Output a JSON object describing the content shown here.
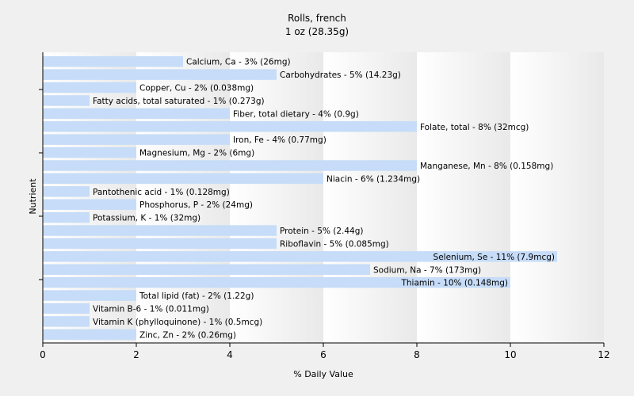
{
  "chart_data": {
    "type": "bar",
    "orientation": "horizontal",
    "title": "Rolls, french",
    "subtitle": "1 oz (28.35g)",
    "xlabel": "% Daily Value",
    "ylabel": "Nutrient",
    "xlim": [
      0,
      12
    ],
    "xticks": [
      0,
      2,
      4,
      6,
      8,
      10,
      12
    ],
    "grid": "vertical bands",
    "bar_color": "#c6dcf8",
    "categories": [
      "Calcium, Ca",
      "Carbohydrates",
      "Copper, Cu",
      "Fatty acids, total saturated",
      "Fiber, total dietary",
      "Folate, total",
      "Iron, Fe",
      "Magnesium, Mg",
      "Manganese, Mn",
      "Niacin",
      "Pantothenic acid",
      "Phosphorus, P",
      "Potassium, K",
      "Protein",
      "Riboflavin",
      "Selenium, Se",
      "Sodium, Na",
      "Thiamin",
      "Total lipid (fat)",
      "Vitamin B-6",
      "Vitamin K (phylloquinone)",
      "Zinc, Zn"
    ],
    "values": [
      3,
      5,
      2,
      1,
      4,
      8,
      4,
      2,
      8,
      6,
      1,
      2,
      1,
      5,
      5,
      11,
      7,
      10,
      2,
      1,
      1,
      2
    ],
    "labels": [
      "Calcium, Ca - 3% (26mg)",
      "Carbohydrates - 5% (14.23g)",
      "Copper, Cu - 2% (0.038mg)",
      "Fatty acids, total saturated - 1% (0.273g)",
      "Fiber, total dietary - 4% (0.9g)",
      "Folate, total - 8% (32mcg)",
      "Iron, Fe - 4% (0.77mg)",
      "Magnesium, Mg - 2% (6mg)",
      "Manganese, Mn - 8% (0.158mg)",
      "Niacin - 6% (1.234mg)",
      "Pantothenic acid - 1% (0.128mg)",
      "Phosphorus, P - 2% (24mg)",
      "Potassium, K - 1% (32mg)",
      "Protein - 5% (2.44g)",
      "Riboflavin - 5% (0.085mg)",
      "Selenium, Se - 11% (7.9mcg)",
      "Sodium, Na - 7% (173mg)",
      "Thiamin - 10% (0.148mg)",
      "Total lipid (fat) - 2% (1.22g)",
      "Vitamin B-6 - 1% (0.011mg)",
      "Vitamin K (phylloquinone) - 1% (0.5mcg)",
      "Zinc, Zn - 2% (0.26mg)"
    ]
  }
}
